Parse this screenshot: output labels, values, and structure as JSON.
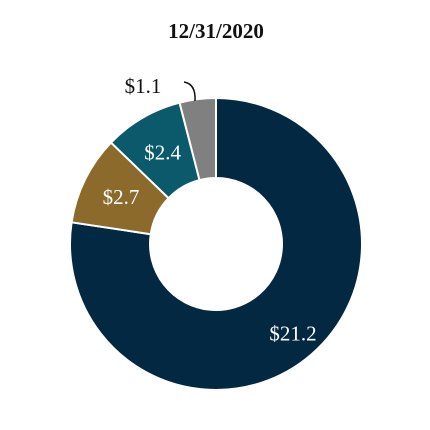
{
  "chart_data": {
    "type": "pie",
    "title": "12/31/2020",
    "donut": true,
    "legend": "none",
    "series": [
      {
        "values": [
          21.2,
          2.7,
          2.4,
          1.1
        ],
        "labels": [
          "$21.2",
          "$2.7",
          "$2.4",
          "$1.1"
        ],
        "colors": [
          "#032842",
          "#8B6A2B",
          "#0B5A6C",
          "#808080"
        ],
        "label_colors": [
          "#ffffff",
          "#ffffff",
          "#ffffff",
          "#111111"
        ]
      }
    ]
  }
}
